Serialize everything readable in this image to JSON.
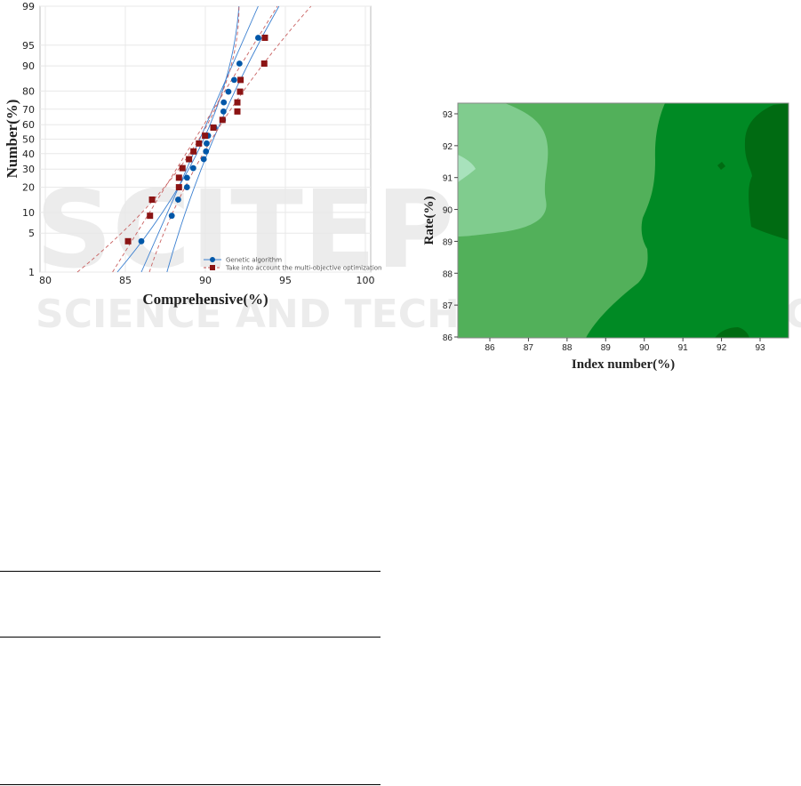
{
  "watermark": {
    "line1": "SCITEPRESS",
    "line2": "SCIENCE AND TECHNOLOGY PUBLICATIONS"
  },
  "chart_data": [
    {
      "type": "scatter",
      "subtype": "normal probability plot",
      "xlabel": "Comprehensive(%)",
      "ylabel": "Number(%)",
      "xlim": [
        80,
        100
      ],
      "ylim": [
        1,
        99
      ],
      "yscale": "normal-probability",
      "xticks": [
        "80",
        "85",
        "90",
        "95",
        "100"
      ],
      "yticks": [
        "1",
        "5",
        "10",
        "20",
        "30",
        "40",
        "50",
        "60",
        "70",
        "80",
        "90",
        "95",
        "99"
      ],
      "grid": true,
      "legend_position": "bottom-right",
      "series": [
        {
          "name": "Genetic algorithm",
          "marker": "circle",
          "color": "#0057a8",
          "points": [
            [
              86.0,
              3.7
            ],
            [
              87.9,
              9
            ],
            [
              88.3,
              14.5
            ],
            [
              88.85,
              20
            ],
            [
              88.85,
              25
            ],
            [
              89.24,
              30.6
            ],
            [
              89.9,
              36.3
            ],
            [
              90.04,
              41.5
            ],
            [
              90.08,
              47
            ],
            [
              90.17,
              52.4
            ],
            [
              90.57,
              58
            ],
            [
              91.1,
              63.2
            ],
            [
              91.13,
              68.6
            ],
            [
              91.15,
              74
            ],
            [
              91.44,
              79.7
            ],
            [
              91.8,
              85
            ],
            [
              92.13,
              90.7
            ],
            [
              93.3,
              96.2
            ]
          ],
          "fit": {
            "x_at_1": 86.0,
            "x_at_99": 93.3
          },
          "ci_lower": {
            "x_at_1": 84.5,
            "x_at_50": 89.9,
            "x_at_99": 92.1
          },
          "ci_upper": {
            "x_at_1": 87.6,
            "x_at_50": 90.5,
            "x_at_99": 94.6
          }
        },
        {
          "name": "Take into account the multi-objective optimization",
          "marker": "square",
          "color": "#8b1414",
          "points": [
            [
              85.17,
              3.7
            ],
            [
              86.54,
              9
            ],
            [
              86.67,
              14.5
            ],
            [
              88.35,
              20
            ],
            [
              88.35,
              25
            ],
            [
              88.57,
              30.6
            ],
            [
              88.98,
              36.3
            ],
            [
              89.26,
              41.5
            ],
            [
              89.6,
              47
            ],
            [
              89.98,
              52.4
            ],
            [
              90.5,
              58
            ],
            [
              91.07,
              63.2
            ],
            [
              92.0,
              68.6
            ],
            [
              92.0,
              74
            ],
            [
              92.17,
              79.7
            ],
            [
              92.2,
              85
            ],
            [
              93.68,
              90.7
            ],
            [
              93.72,
              96.2
            ]
          ],
          "fit": {
            "x_at_1": 84.2,
            "x_at_99": 94.5
          },
          "ci_lower": {
            "x_at_1": 82.0,
            "x_at_50": 89.6,
            "x_at_99": 92.1
          },
          "ci_upper": {
            "x_at_1": 86.5,
            "x_at_50": 90.4,
            "x_at_99": 96.6
          }
        }
      ]
    },
    {
      "type": "heatmap",
      "subtype": "filled contour",
      "xlabel": "Index number(%)",
      "ylabel": "Rate(%)",
      "xlim": [
        85.2,
        93.7
      ],
      "ylim": [
        86,
        93.3
      ],
      "xticks": [
        "86",
        "87",
        "88",
        "89",
        "90",
        "91",
        "92",
        "93"
      ],
      "yticks": [
        "86",
        "87",
        "88",
        "89",
        "90",
        "91",
        "92",
        "93"
      ],
      "colors": [
        "#a8e2bc",
        "#80cc8e",
        "#52b05a",
        "#008a24",
        "#006b12"
      ]
    }
  ]
}
